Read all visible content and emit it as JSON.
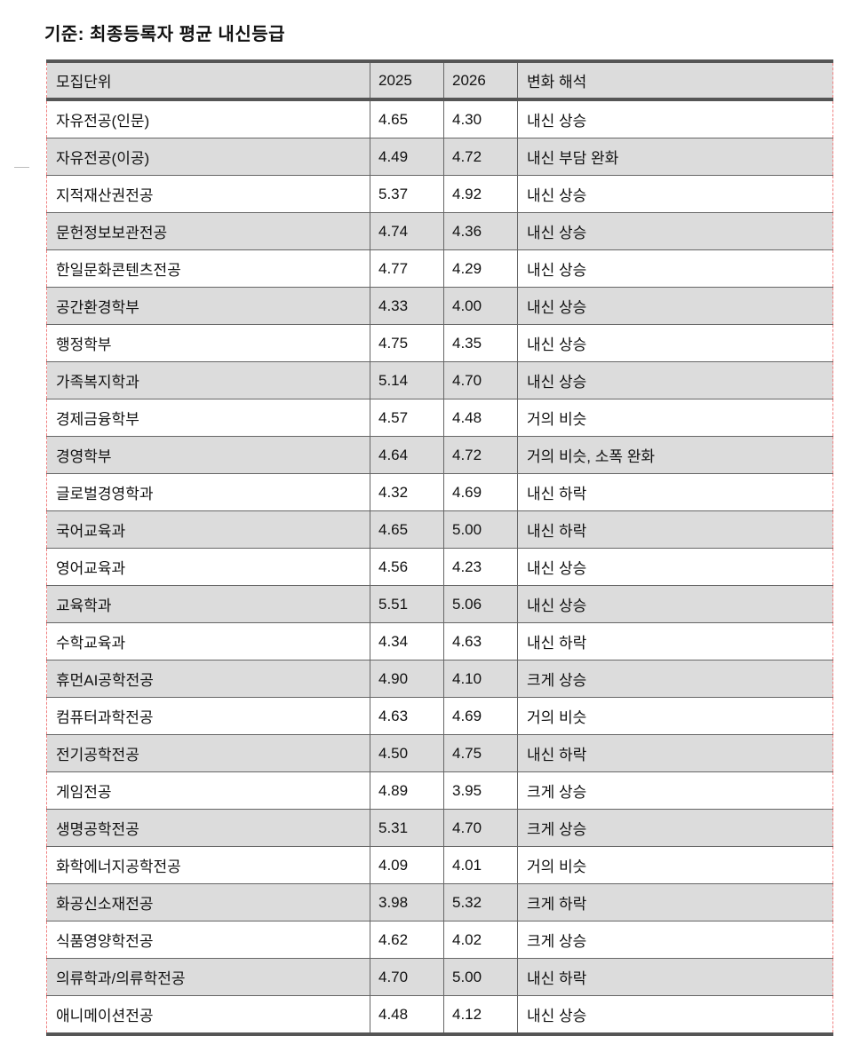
{
  "title": "기준: 최종등록자 평균 내신등급",
  "table": {
    "headers": [
      "모집단위",
      "2025",
      "2026",
      "변화 해석"
    ],
    "rows": [
      [
        "자유전공(인문)",
        "4.65",
        "4.30",
        "내신 상승"
      ],
      [
        "자유전공(이공)",
        "4.49",
        "4.72",
        "내신 부담 완화"
      ],
      [
        "지적재산권전공",
        "5.37",
        "4.92",
        "내신 상승"
      ],
      [
        "문헌정보보관전공",
        "4.74",
        "4.36",
        "내신 상승"
      ],
      [
        "한일문화콘텐츠전공",
        "4.77",
        "4.29",
        "내신 상승"
      ],
      [
        "공간환경학부",
        "4.33",
        "4.00",
        "내신 상승"
      ],
      [
        "행정학부",
        "4.75",
        "4.35",
        "내신 상승"
      ],
      [
        "가족복지학과",
        "5.14",
        "4.70",
        "내신 상승"
      ],
      [
        "경제금융학부",
        "4.57",
        "4.48",
        "거의 비슷"
      ],
      [
        "경영학부",
        "4.64",
        "4.72",
        "거의 비슷, 소폭 완화"
      ],
      [
        "글로벌경영학과",
        "4.32",
        "4.69",
        "내신 하락"
      ],
      [
        "국어교육과",
        "4.65",
        "5.00",
        "내신 하락"
      ],
      [
        "영어교육과",
        "4.56",
        "4.23",
        "내신 상승"
      ],
      [
        "교육학과",
        "5.51",
        "5.06",
        "내신 상승"
      ],
      [
        "수학교육과",
        "4.34",
        "4.63",
        "내신 하락"
      ],
      [
        "휴먼AI공학전공",
        "4.90",
        "4.10",
        "크게 상승"
      ],
      [
        "컴퓨터과학전공",
        "4.63",
        "4.69",
        "거의 비슷"
      ],
      [
        "전기공학전공",
        "4.50",
        "4.75",
        "내신 하락"
      ],
      [
        "게임전공",
        "4.89",
        "3.95",
        "크게 상승"
      ],
      [
        "생명공학전공",
        "5.31",
        "4.70",
        "크게 상승"
      ],
      [
        "화학에너지공학전공",
        "4.09",
        "4.01",
        "거의 비슷"
      ],
      [
        "화공신소재전공",
        "3.98",
        "5.32",
        "크게 하락"
      ],
      [
        "식품영양학전공",
        "4.62",
        "4.02",
        "크게 상승"
      ],
      [
        "의류학과/의류학전공",
        "4.70",
        "5.00",
        "내신 하락"
      ],
      [
        "애니메이션전공",
        "4.48",
        "4.12",
        "내신 상승"
      ]
    ]
  }
}
